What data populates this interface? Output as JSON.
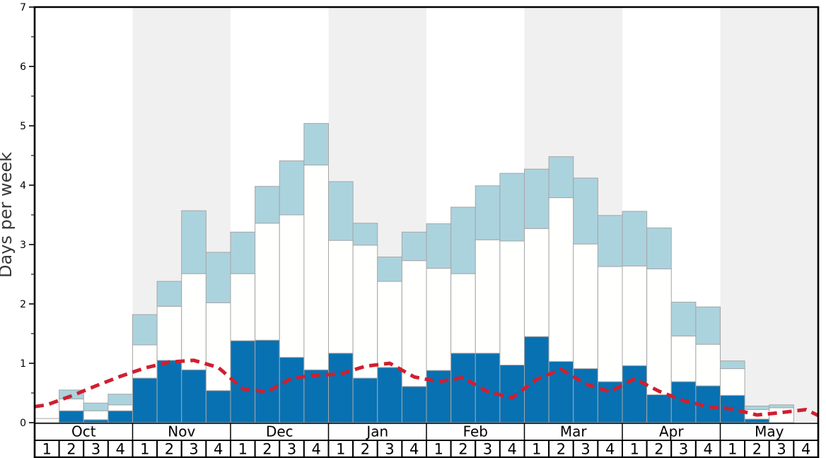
{
  "chart_data": {
    "type": "bar",
    "subtype": "stacked-bars-with-dashed-line",
    "title": "",
    "ylabel": "Days per week",
    "xlabel": "",
    "ylim": [
      0,
      7
    ],
    "yticks": [
      0,
      1,
      2,
      3,
      4,
      5,
      6,
      7
    ],
    "minor_tick_step": 0.5,
    "grid": "off",
    "legend_position": "none",
    "months": [
      "Oct",
      "Nov",
      "Dec",
      "Jan",
      "Feb",
      "Mar",
      "Apr",
      "May"
    ],
    "weeks_per_month": [
      "1",
      "2",
      "3",
      "4"
    ],
    "shaded_months": [
      "Nov",
      "Jan",
      "Mar",
      "May"
    ],
    "series": [
      {
        "name": "dark-blue-days",
        "color": "#0871b2",
        "values": [
          0.0,
          0.2,
          0.05,
          0.2,
          0.75,
          1.05,
          0.89,
          0.54,
          1.38,
          1.39,
          1.1,
          0.89,
          1.17,
          0.75,
          0.93,
          0.61,
          0.88,
          1.17,
          1.17,
          0.97,
          1.45,
          1.03,
          0.91,
          0.69,
          0.96,
          0.47,
          0.69,
          0.62,
          0.46,
          0.06,
          0.0,
          0.0
        ]
      },
      {
        "name": "white-days",
        "color": "#fffffe",
        "values": [
          0.07,
          0.2,
          0.15,
          0.1,
          0.56,
          0.91,
          1.62,
          1.48,
          1.13,
          1.97,
          2.4,
          3.45,
          1.9,
          2.24,
          1.45,
          2.12,
          1.72,
          1.34,
          1.91,
          2.09,
          1.82,
          2.76,
          2.1,
          1.94,
          1.68,
          2.12,
          0.77,
          0.7,
          0.45,
          0.16,
          0.25,
          0.0
        ]
      },
      {
        "name": "light-blue-days",
        "color": "#abd3de",
        "values": [
          0.0,
          0.15,
          0.13,
          0.18,
          0.51,
          0.42,
          1.06,
          0.85,
          0.7,
          0.62,
          0.91,
          0.7,
          0.99,
          0.37,
          0.41,
          0.48,
          0.75,
          1.12,
          0.91,
          1.14,
          1.0,
          0.69,
          1.11,
          0.86,
          0.92,
          0.69,
          0.57,
          0.63,
          0.13,
          0.06,
          0.05,
          0.0
        ]
      }
    ],
    "line_series": {
      "name": "red-dashed-average-line",
      "color": "#cf1f30",
      "dash": [
        13,
        8
      ],
      "stroke_width": 5,
      "edge_start": 0.27,
      "edge_end": 0.12,
      "values": [
        0.3,
        0.45,
        0.62,
        0.78,
        0.92,
        1.02,
        1.05,
        0.93,
        0.57,
        0.52,
        0.75,
        0.8,
        0.82,
        0.95,
        1.0,
        0.77,
        0.69,
        0.76,
        0.52,
        0.42,
        0.73,
        0.9,
        0.65,
        0.52,
        0.74,
        0.53,
        0.37,
        0.27,
        0.23,
        0.13,
        0.17,
        0.22
      ]
    },
    "colors": {
      "band_shaded": "#f0f0f0",
      "band_plain": "#ffffff",
      "bar_border": "#a6a6a6",
      "axis": "#000000",
      "ylabel_text": "#383838",
      "footer_cell_bg": "#ffffff"
    }
  }
}
